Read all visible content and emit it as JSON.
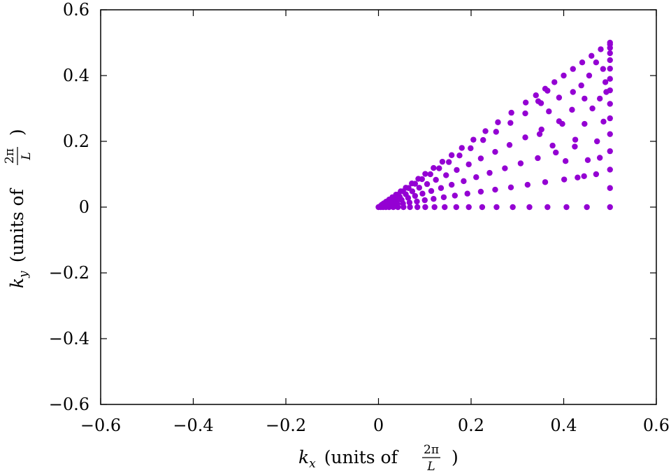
{
  "chart_data": {
    "type": "scatter",
    "title": "",
    "xlabel": {
      "var": "k",
      "sub": "x",
      "text": "(units of",
      "frac_num": "2π",
      "frac_den": "L",
      "close": ")"
    },
    "ylabel": {
      "var": "k",
      "sub": "y",
      "text": "(units of",
      "frac_num": "2π",
      "frac_den": "L",
      "close": ")"
    },
    "xlim": [
      -0.6,
      0.6
    ],
    "ylim": [
      -0.6,
      0.6
    ],
    "xticks": [
      -0.6,
      -0.4,
      -0.2,
      0,
      0.2,
      0.4,
      0.6
    ],
    "yticks": [
      -0.6,
      -0.4,
      -0.2,
      0,
      0.2,
      0.4,
      0.6
    ],
    "xtick_labels": [
      "−0.6",
      "−0.4",
      "−0.2",
      "0",
      "0.2",
      "0.4",
      "0.6"
    ],
    "ytick_labels": [
      "−0.6",
      "−0.4",
      "−0.2",
      "0",
      "0.2",
      "0.4",
      "0.6"
    ],
    "grid": false,
    "legend": "none",
    "marker_color": "#9400d3",
    "series": [
      {
        "values_description": "k-points in irreducible wedge 0 ≤ ky ≤ kx ≤ 0.5",
        "points": [
          [
            0.0,
            0.0
          ],
          [
            0.005,
            0.0
          ],
          [
            0.005,
            0.002
          ],
          [
            0.005,
            0.004
          ],
          [
            0.01,
            0.0
          ],
          [
            0.01,
            0.003
          ],
          [
            0.009,
            0.005
          ],
          [
            0.008,
            0.007
          ],
          [
            0.007,
            0.007
          ],
          [
            0.016,
            0.0
          ],
          [
            0.016,
            0.004
          ],
          [
            0.015,
            0.007
          ],
          [
            0.014,
            0.01
          ],
          [
            0.012,
            0.011
          ],
          [
            0.011,
            0.011
          ],
          [
            0.023,
            0.0
          ],
          [
            0.023,
            0.005
          ],
          [
            0.022,
            0.01
          ],
          [
            0.02,
            0.014
          ],
          [
            0.018,
            0.017
          ],
          [
            0.016,
            0.016
          ],
          [
            0.032,
            0.0
          ],
          [
            0.031,
            0.007
          ],
          [
            0.03,
            0.013
          ],
          [
            0.028,
            0.019
          ],
          [
            0.025,
            0.023
          ],
          [
            0.023,
            0.023
          ],
          [
            0.042,
            0.0
          ],
          [
            0.041,
            0.009
          ],
          [
            0.039,
            0.017
          ],
          [
            0.036,
            0.024
          ],
          [
            0.033,
            0.03
          ],
          [
            0.03,
            0.03
          ],
          [
            0.054,
            0.0
          ],
          [
            0.053,
            0.011
          ],
          [
            0.05,
            0.022
          ],
          [
            0.046,
            0.031
          ],
          [
            0.042,
            0.038
          ],
          [
            0.038,
            0.038
          ],
          [
            0.068,
            0.0
          ],
          [
            0.067,
            0.014
          ],
          [
            0.064,
            0.028
          ],
          [
            0.059,
            0.039
          ],
          [
            0.053,
            0.048
          ],
          [
            0.048,
            0.048
          ],
          [
            0.084,
            0.0
          ],
          [
            0.083,
            0.017
          ],
          [
            0.079,
            0.034
          ],
          [
            0.073,
            0.048
          ],
          [
            0.065,
            0.058
          ],
          [
            0.059,
            0.059
          ],
          [
            0.101,
            0.0
          ],
          [
            0.1,
            0.021
          ],
          [
            0.095,
            0.041
          ],
          [
            0.088,
            0.059
          ],
          [
            0.079,
            0.071
          ],
          [
            0.072,
            0.072
          ],
          [
            0.121,
            0.0
          ],
          [
            0.119,
            0.025
          ],
          [
            0.114,
            0.049
          ],
          [
            0.105,
            0.07
          ],
          [
            0.094,
            0.085
          ],
          [
            0.086,
            0.086
          ],
          [
            0.143,
            0.0
          ],
          [
            0.141,
            0.03
          ],
          [
            0.135,
            0.058
          ],
          [
            0.124,
            0.083
          ],
          [
            0.112,
            0.1
          ],
          [
            0.101,
            0.101
          ],
          [
            0.168,
            0.0
          ],
          [
            0.165,
            0.035
          ],
          [
            0.158,
            0.068
          ],
          [
            0.146,
            0.097
          ],
          [
            0.131,
            0.118
          ],
          [
            0.119,
            0.119
          ],
          [
            0.195,
            0.0
          ],
          [
            0.192,
            0.041
          ],
          [
            0.184,
            0.079
          ],
          [
            0.169,
            0.113
          ],
          [
            0.152,
            0.137
          ],
          [
            0.138,
            0.138
          ],
          [
            0.224,
            0.0
          ],
          [
            0.221,
            0.047
          ],
          [
            0.211,
            0.091
          ],
          [
            0.195,
            0.13
          ],
          [
            0.175,
            0.157
          ],
          [
            0.158,
            0.158
          ],
          [
            0.255,
            0.0
          ],
          [
            0.252,
            0.053
          ],
          [
            0.24,
            0.104
          ],
          [
            0.221,
            0.148
          ],
          [
            0.199,
            0.179
          ],
          [
            0.18,
            0.18
          ],
          [
            0.29,
            0.0
          ],
          [
            0.286,
            0.06
          ],
          [
            0.273,
            0.118
          ],
          [
            0.252,
            0.168
          ],
          [
            0.226,
            0.204
          ],
          [
            0.205,
            0.205
          ],
          [
            0.326,
            0.0
          ],
          [
            0.322,
            0.068
          ],
          [
            0.307,
            0.133
          ],
          [
            0.283,
            0.189
          ],
          [
            0.254,
            0.229
          ],
          [
            0.231,
            0.231
          ],
          [
            0.365,
            0.0
          ],
          [
            0.36,
            0.076
          ],
          [
            0.344,
            0.149
          ],
          [
            0.317,
            0.212
          ],
          [
            0.285,
            0.256
          ],
          [
            0.258,
            0.258
          ],
          [
            0.406,
            0.0
          ],
          [
            0.401,
            0.084
          ],
          [
            0.383,
            0.166
          ],
          [
            0.352,
            0.236
          ],
          [
            0.317,
            0.285
          ],
          [
            0.287,
            0.287
          ],
          [
            0.45,
            0.0
          ],
          [
            0.444,
            0.094
          ],
          [
            0.424,
            0.184
          ],
          [
            0.39,
            0.261
          ],
          [
            0.351,
            0.316
          ],
          [
            0.318,
            0.318
          ],
          [
            0.5,
            0.0
          ],
          [
            0.5,
            0.058
          ],
          [
            0.5,
            0.114
          ],
          [
            0.5,
            0.17
          ],
          [
            0.5,
            0.222
          ],
          [
            0.5,
            0.27
          ],
          [
            0.5,
            0.314
          ],
          [
            0.5,
            0.355
          ],
          [
            0.5,
            0.39
          ],
          [
            0.5,
            0.421
          ],
          [
            0.5,
            0.447
          ],
          [
            0.5,
            0.468
          ],
          [
            0.5,
            0.484
          ],
          [
            0.5,
            0.495
          ],
          [
            0.5,
            0.5
          ],
          [
            0.48,
            0.48
          ],
          [
            0.46,
            0.46
          ],
          [
            0.44,
            0.44
          ],
          [
            0.42,
            0.42
          ],
          [
            0.4,
            0.4
          ],
          [
            0.38,
            0.38
          ],
          [
            0.36,
            0.36
          ],
          [
            0.34,
            0.34
          ],
          [
            0.472,
            0.2
          ],
          [
            0.445,
            0.253
          ],
          [
            0.418,
            0.296
          ],
          [
            0.39,
            0.333
          ],
          [
            0.365,
            0.354
          ],
          [
            0.452,
            0.143
          ],
          [
            0.425,
            0.205
          ],
          [
            0.397,
            0.253
          ],
          [
            0.368,
            0.291
          ],
          [
            0.345,
            0.322
          ],
          [
            0.43,
            0.09
          ],
          [
            0.404,
            0.14
          ],
          [
            0.376,
            0.187
          ],
          [
            0.348,
            0.222
          ],
          [
            0.47,
            0.1
          ],
          [
            0.478,
            0.15
          ],
          [
            0.486,
            0.26
          ],
          [
            0.492,
            0.35
          ],
          [
            0.485,
            0.42
          ],
          [
            0.47,
            0.44
          ],
          [
            0.455,
            0.4
          ],
          [
            0.438,
            0.37
          ],
          [
            0.42,
            0.35
          ],
          [
            0.445,
            0.33
          ],
          [
            0.462,
            0.3
          ],
          [
            0.478,
            0.33
          ],
          [
            0.49,
            0.38
          ]
        ]
      }
    ]
  }
}
